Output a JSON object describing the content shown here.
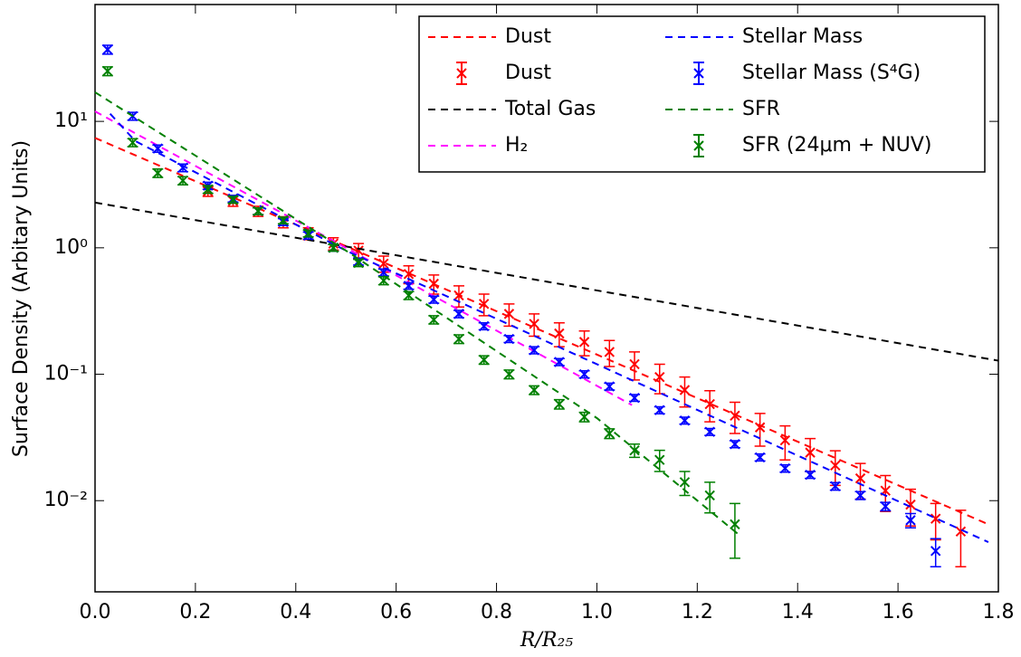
{
  "chart_data": {
    "type": "line",
    "xlabel": "R/R₂₅",
    "ylabel": "Surface Density (Arbitary Units)",
    "xlim": [
      0,
      1.8
    ],
    "ylim": [
      0.0019,
      84
    ],
    "log_y": true,
    "xticks": [
      {
        "value": 0,
        "label": "0.0"
      },
      0.2,
      0.4,
      0.6,
      0.8,
      {
        "value": 1,
        "label": "1.0"
      },
      1.2,
      1.4,
      1.6,
      1.8
    ],
    "yticks": [
      {
        "value": 0.01,
        "label": "10⁻²"
      },
      {
        "value": 0.1,
        "label": "10⁻¹"
      },
      {
        "value": 1,
        "label": "10⁰"
      },
      {
        "value": 10,
        "label": "10¹"
      }
    ],
    "legend": "upper right",
    "series": [
      {
        "name": "Dust",
        "kind": "line",
        "color": "#ff0000",
        "x": [
          0,
          0.5,
          1.0,
          1.5,
          1.78
        ],
        "values": [
          7.4,
          1.03,
          0.143,
          0.0197,
          0.0065
        ]
      },
      {
        "name": "Dust",
        "kind": "errorbar",
        "color": "#ff0000",
        "x": [
          0.225,
          0.275,
          0.325,
          0.375,
          0.425,
          0.475,
          0.525,
          0.575,
          0.625,
          0.675,
          0.725,
          0.775,
          0.825,
          0.875,
          0.925,
          0.975,
          1.025,
          1.075,
          1.125,
          1.175,
          1.225,
          1.275,
          1.325,
          1.375,
          1.425,
          1.475,
          1.525,
          1.575,
          1.625,
          1.675,
          1.725
        ],
        "values": [
          2.8,
          2.35,
          1.95,
          1.6,
          1.3,
          1.08,
          0.95,
          0.75,
          0.62,
          0.52,
          0.42,
          0.36,
          0.3,
          0.25,
          0.21,
          0.18,
          0.15,
          0.12,
          0.095,
          0.075,
          0.058,
          0.047,
          0.038,
          0.03,
          0.024,
          0.019,
          0.015,
          0.012,
          0.0093,
          0.0072,
          0.0057
        ],
        "errors": [
          0.25,
          0.22,
          0.18,
          0.16,
          0.14,
          0.12,
          0.13,
          0.11,
          0.1,
          0.09,
          0.08,
          0.07,
          0.06,
          0.05,
          0.045,
          0.04,
          0.035,
          0.03,
          0.025,
          0.02,
          0.016,
          0.013,
          0.011,
          0.009,
          0.007,
          0.0058,
          0.0047,
          0.0038,
          0.003,
          0.0023,
          0.0027
        ]
      },
      {
        "name": "Total Gas",
        "kind": "line",
        "color": "#000000",
        "x": [
          0,
          0.9,
          1.8
        ],
        "values": [
          2.28,
          0.54,
          0.128
        ]
      },
      {
        "name": "H₂",
        "kind": "line",
        "color": "#ff00ff",
        "x": [
          0,
          0.5,
          1.07
        ],
        "values": [
          12,
          1.0,
          0.057
        ]
      },
      {
        "name": "Stellar Mass",
        "kind": "line",
        "color": "#0000ff",
        "x": [
          0.03,
          0.08,
          0.5,
          1.0,
          1.5,
          1.78
        ],
        "values": [
          11.5,
          7,
          0.95,
          0.12,
          0.015,
          0.0047
        ]
      },
      {
        "name": "Stellar Mass (S⁴G)",
        "kind": "errorbar",
        "color": "#0000ff",
        "x": [
          0.025,
          0.075,
          0.125,
          0.175,
          0.225,
          0.275,
          0.325,
          0.375,
          0.425,
          0.475,
          0.525,
          0.575,
          0.625,
          0.675,
          0.725,
          0.775,
          0.825,
          0.875,
          0.925,
          0.975,
          1.025,
          1.075,
          1.125,
          1.175,
          1.225,
          1.275,
          1.325,
          1.375,
          1.425,
          1.475,
          1.525,
          1.575,
          1.625,
          1.675
        ],
        "values": [
          37,
          11,
          6.1,
          4.3,
          3.1,
          2.45,
          1.95,
          1.6,
          1.25,
          1.0,
          0.78,
          0.64,
          0.5,
          0.39,
          0.3,
          0.24,
          0.19,
          0.155,
          0.125,
          0.1,
          0.08,
          0.065,
          0.052,
          0.043,
          0.035,
          0.028,
          0.022,
          0.018,
          0.016,
          0.013,
          0.011,
          0.009,
          0.007,
          0.004
        ],
        "errors": [
          3,
          0.8,
          0.4,
          0.3,
          0.2,
          0.15,
          0.12,
          0.1,
          0.08,
          0.06,
          0.05,
          0.04,
          0.03,
          0.025,
          0.02,
          0.015,
          0.012,
          0.01,
          0.008,
          0.0065,
          0.005,
          0.004,
          0.0033,
          0.0027,
          0.0022,
          0.0018,
          0.0014,
          0.0012,
          0.001,
          0.0009,
          0.0008,
          0.0007,
          0.0009,
          0.001
        ]
      },
      {
        "name": "SFR",
        "kind": "line",
        "color": "#008000",
        "x": [
          0,
          0.5,
          1.0,
          1.28
        ],
        "values": [
          17,
          0.95,
          0.045,
          0.0055
        ]
      },
      {
        "name": "SFR (24μm + NUV)",
        "kind": "errorbar",
        "color": "#008000",
        "x": [
          0.025,
          0.075,
          0.125,
          0.175,
          0.225,
          0.275,
          0.325,
          0.375,
          0.425,
          0.475,
          0.525,
          0.575,
          0.625,
          0.675,
          0.725,
          0.775,
          0.825,
          0.875,
          0.925,
          0.975,
          1.025,
          1.075,
          1.125,
          1.175,
          1.225,
          1.275
        ],
        "values": [
          25,
          6.8,
          3.9,
          3.4,
          2.9,
          2.4,
          1.95,
          1.65,
          1.3,
          1.0,
          0.76,
          0.55,
          0.42,
          0.27,
          0.19,
          0.13,
          0.1,
          0.075,
          0.058,
          0.046,
          0.034,
          0.025,
          0.021,
          0.014,
          0.011,
          0.0065
        ],
        "errors": [
          2,
          0.5,
          0.3,
          0.25,
          0.2,
          0.15,
          0.12,
          0.1,
          0.08,
          0.06,
          0.05,
          0.04,
          0.03,
          0.02,
          0.015,
          0.01,
          0.008,
          0.006,
          0.005,
          0.004,
          0.003,
          0.003,
          0.004,
          0.003,
          0.003,
          0.003
        ]
      }
    ]
  }
}
